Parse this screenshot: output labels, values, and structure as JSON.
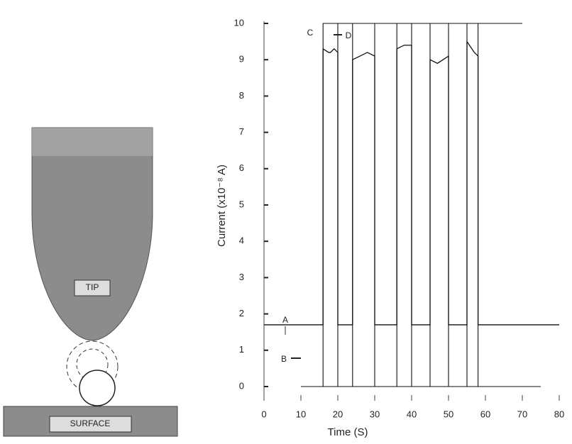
{
  "diagram": {
    "tip_label": "TIP",
    "surface_label": "SURFACE"
  },
  "chart_data": {
    "type": "line",
    "xlabel": "Time (S)",
    "ylabel": "Current (x10⁻⁸ A)",
    "xlim": [
      0,
      80
    ],
    "ylim": [
      0,
      10
    ],
    "xticks": [
      0,
      10,
      20,
      30,
      40,
      50,
      60,
      70,
      80
    ],
    "yticks": [
      0,
      1,
      2,
      3,
      4,
      5,
      6,
      7,
      8,
      9,
      10
    ],
    "annotations": [
      "A",
      "B",
      "C",
      "D"
    ],
    "series": [
      {
        "color": "#111",
        "x": [
          0,
          16,
          16,
          17.5,
          18,
          19,
          20,
          20,
          24,
          24,
          26,
          28,
          30,
          30,
          36,
          36,
          38,
          40,
          40,
          45,
          45,
          47,
          50,
          50,
          55,
          55,
          57,
          58,
          58,
          80
        ],
        "values": [
          1.7,
          1.7,
          9.3,
          9.2,
          9.2,
          9.3,
          9.2,
          1.7,
          1.7,
          9.0,
          9.1,
          9.2,
          9.1,
          1.7,
          1.7,
          9.3,
          9.4,
          9.4,
          1.7,
          1.7,
          9.0,
          8.9,
          9.1,
          1.7,
          1.7,
          9.5,
          9.2,
          9.1,
          1.7,
          1.7
        ]
      },
      {
        "color": "#111",
        "x": [
          16,
          16,
          20,
          20,
          24,
          24,
          30,
          30,
          36,
          36,
          40,
          40,
          45,
          45,
          50,
          50,
          55,
          55,
          58,
          58,
          70
        ],
        "values": [
          0,
          10,
          10,
          0,
          0,
          10,
          10,
          0,
          0,
          10,
          10,
          0,
          0,
          10,
          10,
          0,
          0,
          10,
          10,
          0,
          0
        ]
      },
      {
        "color": "#111",
        "x": [
          20,
          70
        ],
        "values": [
          10,
          10
        ]
      },
      {
        "color": "#111",
        "x": [
          10,
          75
        ],
        "values": [
          0,
          0
        ]
      }
    ]
  }
}
